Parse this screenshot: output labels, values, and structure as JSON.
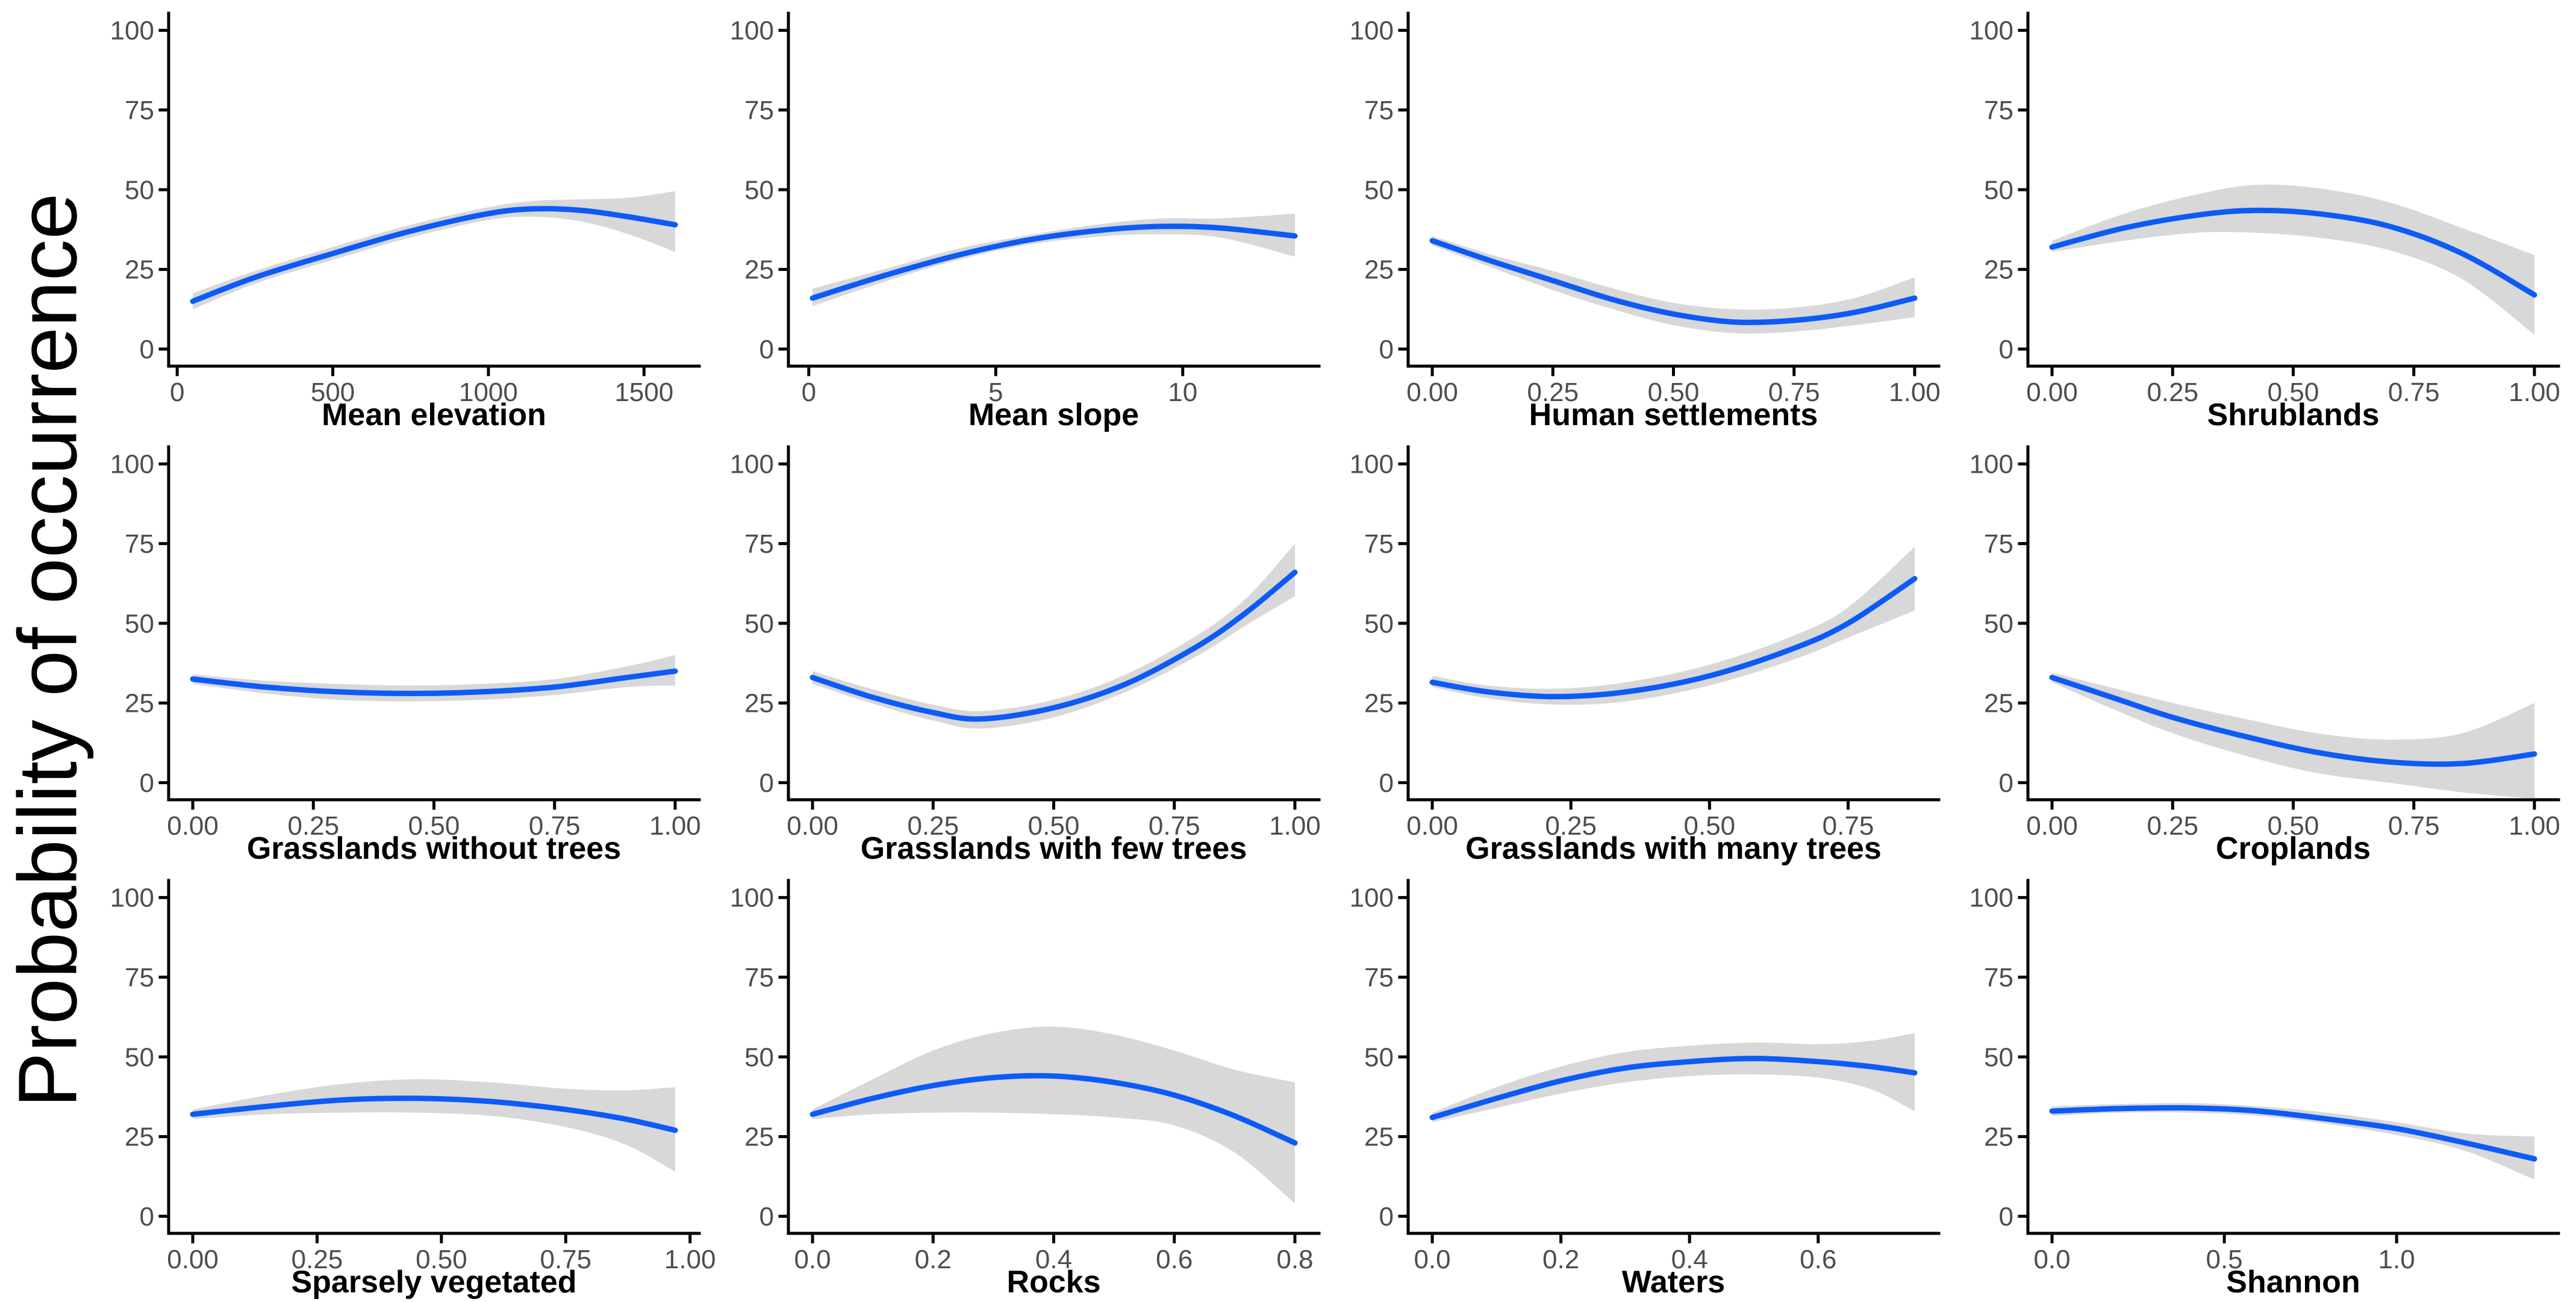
{
  "ylabel": "Probability of occurrence",
  "style": {
    "line_color": "#0D5BF7",
    "ribbon_color": "#D8D8D8",
    "axis_color": "#000000",
    "tick_text_color": "#4D4D4D",
    "title_text_color": "#000000",
    "background": "#FFFFFF"
  },
  "y_axis": {
    "ticks": [
      0,
      25,
      50,
      75,
      100
    ],
    "labels": [
      "0",
      "25",
      "50",
      "75",
      "100"
    ],
    "limits": [
      0,
      100
    ]
  },
  "chart_data": [
    {
      "type": "line",
      "title": "Mean elevation",
      "x_ticks": [
        0,
        500,
        1000,
        1500
      ],
      "x_tick_labels": [
        "0",
        "500",
        "1000",
        "1500"
      ],
      "x": [
        50,
        250,
        500,
        750,
        1000,
        1150,
        1300,
        1450,
        1600
      ],
      "y": [
        15,
        22.5,
        30,
        37,
        42.5,
        44,
        43.5,
        41.5,
        39
      ],
      "lo": [
        12.5,
        20.5,
        28,
        35,
        40.5,
        41.5,
        40,
        36,
        30.5
      ],
      "hi": [
        17.5,
        24.5,
        32,
        39,
        44.5,
        46.5,
        47,
        47.5,
        49.5
      ]
    },
    {
      "type": "line",
      "title": "Mean slope",
      "x_ticks": [
        0,
        5,
        10
      ],
      "x_tick_labels": [
        "0",
        "5",
        "10"
      ],
      "x": [
        0.1,
        2,
        4,
        6,
        8,
        9.5,
        11,
        13
      ],
      "y": [
        16,
        23,
        29.5,
        34.5,
        37.5,
        38.5,
        38,
        35.5
      ],
      "lo": [
        13.5,
        21,
        28,
        33,
        35.5,
        36,
        35,
        29
      ],
      "hi": [
        19,
        25,
        31.5,
        36,
        39.5,
        41,
        41,
        42.5
      ]
    },
    {
      "type": "line",
      "title": "Human settlements",
      "x_ticks": [
        0,
        0.25,
        0.5,
        0.75,
        1
      ],
      "x_tick_labels": [
        "0.00",
        "0.25",
        "0.50",
        "0.75",
        "1.00"
      ],
      "x": [
        0,
        0.125,
        0.25,
        0.375,
        0.5,
        0.625,
        0.75,
        0.875,
        1.0
      ],
      "y": [
        34,
        27.5,
        21.5,
        15.5,
        11,
        8.5,
        9,
        11.5,
        16
      ],
      "lo": [
        32.5,
        25.5,
        18.5,
        12.5,
        7.5,
        5,
        5.5,
        7.5,
        10
      ],
      "hi": [
        35.5,
        29.5,
        24.5,
        19,
        14.5,
        12.5,
        13,
        16,
        22.5
      ]
    },
    {
      "type": "line",
      "title": "Shrublands",
      "x_ticks": [
        0,
        0.25,
        0.5,
        0.75,
        1
      ],
      "x_tick_labels": [
        "0.00",
        "0.25",
        "0.50",
        "0.75",
        "1.00"
      ],
      "x": [
        0,
        0.15,
        0.3,
        0.42,
        0.55,
        0.7,
        0.85,
        1.0
      ],
      "y": [
        32,
        38,
        42,
        43.5,
        42.5,
        38.5,
        30,
        17
      ],
      "lo": [
        30.5,
        34,
        36.5,
        36.5,
        35,
        31,
        22,
        4.5
      ],
      "hi": [
        34,
        42.5,
        48.5,
        51.5,
        50.5,
        46,
        38,
        29.5
      ]
    },
    {
      "type": "line",
      "title": "Grasslands without trees",
      "x_ticks": [
        0,
        0.25,
        0.5,
        0.75,
        1
      ],
      "x_tick_labels": [
        "0.00",
        "0.25",
        "0.50",
        "0.75",
        "1.00"
      ],
      "x": [
        0,
        0.15,
        0.3,
        0.45,
        0.6,
        0.75,
        0.9,
        1.0
      ],
      "y": [
        32.5,
        30,
        28.5,
        28,
        28.5,
        30,
        33,
        35
      ],
      "lo": [
        31,
        28,
        26,
        25.5,
        26,
        27.5,
        30,
        30.5
      ],
      "hi": [
        34,
        32,
        31,
        30.5,
        31,
        32.5,
        36.5,
        40
      ]
    },
    {
      "type": "line",
      "title": "Grasslands with few trees",
      "x_ticks": [
        0,
        0.25,
        0.5,
        0.75,
        1
      ],
      "x_tick_labels": [
        "0.00",
        "0.25",
        "0.50",
        "0.75",
        "1.00"
      ],
      "x": [
        0,
        0.12,
        0.25,
        0.35,
        0.5,
        0.65,
        0.8,
        0.9,
        1.0
      ],
      "y": [
        33,
        27,
        22,
        20,
        23.5,
        31,
        43,
        53.5,
        66
      ],
      "lo": [
        31,
        25,
        19.5,
        17,
        20.5,
        28.5,
        40,
        49.5,
        58.5
      ],
      "hi": [
        35,
        29.5,
        24.5,
        22.5,
        26,
        34,
        46.5,
        58,
        75
      ]
    },
    {
      "type": "line",
      "title": "Grasslands with many trees",
      "x_ticks": [
        0,
        0.25,
        0.5,
        0.75
      ],
      "x_tick_labels": [
        "0.00",
        "0.25",
        "0.50",
        "0.75"
      ],
      "x": [
        0,
        0.1,
        0.22,
        0.35,
        0.5,
        0.65,
        0.75,
        0.87
      ],
      "y": [
        31.5,
        28.5,
        27,
        28.5,
        33.5,
        42,
        50,
        64
      ],
      "lo": [
        30,
        26.5,
        24.5,
        25.5,
        30.5,
        38.5,
        45.5,
        54
      ],
      "hi": [
        33.5,
        30.5,
        29.5,
        31.5,
        37,
        46,
        55,
        74
      ]
    },
    {
      "type": "line",
      "title": "Croplands",
      "x_ticks": [
        0,
        0.25,
        0.5,
        0.75,
        1
      ],
      "x_tick_labels": [
        "0.00",
        "0.25",
        "0.50",
        "0.75",
        "1.00"
      ],
      "x": [
        0,
        0.12,
        0.25,
        0.4,
        0.55,
        0.7,
        0.85,
        1.0
      ],
      "y": [
        33,
        27,
        20.5,
        14.5,
        9.5,
        6.5,
        6,
        9
      ],
      "lo": [
        31.5,
        23.5,
        15.5,
        8.5,
        3,
        0,
        -3,
        -5
      ],
      "hi": [
        34.5,
        30,
        25,
        20,
        15.5,
        13.5,
        15.5,
        25
      ]
    },
    {
      "type": "line",
      "title": "Sparsely vegetated",
      "x_ticks": [
        0,
        0.25,
        0.5,
        0.75,
        1
      ],
      "x_tick_labels": [
        "0.00",
        "0.25",
        "0.50",
        "0.75",
        "1.00"
      ],
      "x": [
        0,
        0.15,
        0.3,
        0.45,
        0.6,
        0.75,
        0.87,
        0.97
      ],
      "y": [
        32,
        34.5,
        36.5,
        37,
        36,
        33.5,
        30.5,
        27
      ],
      "lo": [
        30.5,
        32,
        32.5,
        32.5,
        31.5,
        28,
        22.5,
        14
      ],
      "hi": [
        33.5,
        38,
        41.5,
        43,
        42,
        40,
        39.5,
        40.5
      ]
    },
    {
      "type": "line",
      "title": "Rocks",
      "x_ticks": [
        0,
        0.2,
        0.4,
        0.6,
        0.8
      ],
      "x_tick_labels": [
        "0.0",
        "0.2",
        "0.4",
        "0.6",
        "0.8"
      ],
      "x": [
        0,
        0.1,
        0.2,
        0.3,
        0.4,
        0.5,
        0.6,
        0.7,
        0.8
      ],
      "y": [
        32,
        37,
        41,
        43.5,
        44,
        42,
        38,
        31.5,
        23
      ],
      "lo": [
        30.5,
        32,
        32.5,
        32.5,
        32,
        31,
        28.5,
        20,
        4
      ],
      "hi": [
        33.5,
        43,
        52,
        57.5,
        59.5,
        57,
        52,
        46,
        42
      ]
    },
    {
      "type": "line",
      "title": "Waters",
      "x_ticks": [
        0,
        0.2,
        0.4,
        0.6
      ],
      "x_tick_labels": [
        "0.0",
        "0.2",
        "0.4",
        "0.6"
      ],
      "x": [
        0,
        0.1,
        0.2,
        0.3,
        0.4,
        0.5,
        0.6,
        0.68,
        0.75
      ],
      "y": [
        31,
        37,
        42.5,
        46.5,
        48.5,
        49.5,
        48.5,
        47,
        45
      ],
      "lo": [
        29.5,
        34,
        38.5,
        42,
        44,
        44.5,
        43.5,
        40,
        33
      ],
      "hi": [
        32.5,
        40.5,
        47,
        51.5,
        53.5,
        54.5,
        54,
        55,
        57.5
      ]
    },
    {
      "type": "line",
      "title": "Shannon",
      "x_ticks": [
        0,
        0.5,
        1.0
      ],
      "x_tick_labels": [
        "0.0",
        "0.5",
        "1.0"
      ],
      "x": [
        0,
        0.2,
        0.4,
        0.6,
        0.8,
        1.0,
        1.2,
        1.4
      ],
      "y": [
        33,
        33.8,
        34,
        33,
        30.5,
        27.5,
        23,
        18
      ],
      "lo": [
        31.5,
        32.5,
        32.5,
        31.5,
        29,
        25.5,
        20.5,
        11.5
      ],
      "hi": [
        34.5,
        35.2,
        35.5,
        34.5,
        32.5,
        29.5,
        26,
        25
      ]
    }
  ]
}
